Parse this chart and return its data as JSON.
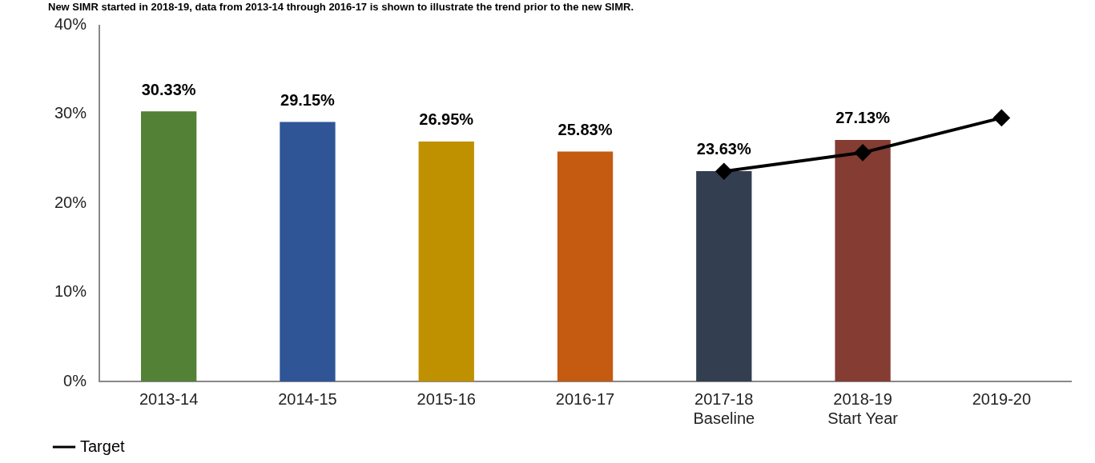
{
  "chart_data": {
    "type": "bar",
    "title": "New SIMR started in 2018-19, data from 2013-14 through 2016-17 is shown to illustrate the trend prior to the new SIMR.",
    "categories": [
      "2013-14",
      "2014-15",
      "2015-16",
      "2016-17",
      "2017-18\nBaseline",
      "2018-19\nStart Year",
      "2019-20"
    ],
    "series": [
      {
        "colors": [
          "#538135",
          "#2f5597",
          "#bf9000",
          "#c55a11",
          "#333f50",
          "#843c33",
          null
        ],
        "values": [
          30.33,
          29.15,
          26.95,
          25.83,
          23.63,
          27.13,
          null
        ],
        "value_labels": [
          "30.33%",
          "29.15%",
          "26.95%",
          "25.83%",
          "23.63%",
          "27.13%",
          null
        ]
      },
      {
        "type": "line",
        "name": "Target",
        "color": "#000000",
        "marker": "diamond",
        "values": [
          null,
          null,
          null,
          null,
          23.6,
          25.7,
          29.6
        ]
      }
    ],
    "ylim": [
      0,
      40
    ],
    "yticks": [
      {
        "value": 0,
        "label": "0%"
      },
      {
        "value": 10,
        "label": "10%"
      },
      {
        "value": 20,
        "label": "20%"
      },
      {
        "value": 30,
        "label": "30%"
      },
      {
        "value": 40,
        "label": "40%"
      }
    ],
    "grid": false,
    "legend": "bottom left"
  }
}
